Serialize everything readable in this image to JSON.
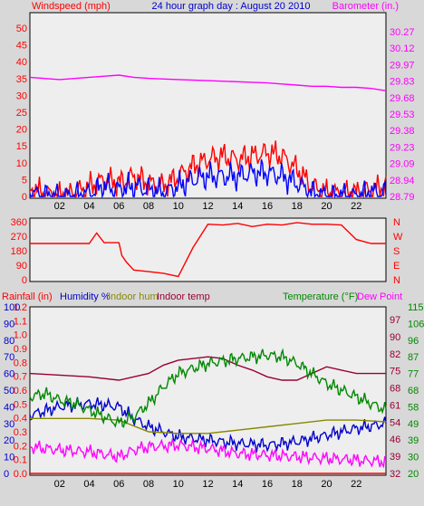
{
  "chart_data": [
    {
      "type": "line",
      "title": "24 hour graph day : August 20 2010",
      "hours": [
        "02",
        "04",
        "06",
        "08",
        "10",
        "12",
        "14",
        "16",
        "18",
        "20",
        "22"
      ],
      "left_axis": {
        "label": "Windspeed (mph)",
        "ticks": [
          "50",
          "45",
          "40",
          "35",
          "30",
          "25",
          "20",
          "15",
          "10",
          "5",
          "0"
        ],
        "ylim": [
          0,
          50
        ]
      },
      "right_axis": {
        "label": "Barometer (in.)",
        "ticks": [
          "30.27",
          "30.12",
          "29.97",
          "29.83",
          "29.68",
          "29.53",
          "29.38",
          "29.23",
          "29.09",
          "28.94",
          "28.79"
        ],
        "ylim": [
          28.79,
          30.27
        ]
      },
      "series": [
        {
          "name": "Windspeed (mph)",
          "color": "#ff0000",
          "x": [
            0,
            1,
            2,
            3,
            4,
            5,
            6,
            7,
            8,
            9,
            10,
            11,
            12,
            13,
            14,
            15,
            16,
            17,
            18,
            19,
            20,
            21,
            22,
            23,
            24
          ],
          "y": [
            2,
            1,
            0,
            1,
            3,
            5,
            4,
            6,
            4,
            3,
            6,
            9,
            11,
            12,
            11,
            12,
            13,
            12,
            8,
            3,
            1,
            1,
            1,
            2,
            3
          ]
        },
        {
          "name": "Gust",
          "color": "#0000ff",
          "x": [
            0,
            1,
            2,
            3,
            4,
            5,
            6,
            7,
            8,
            9,
            10,
            11,
            12,
            13,
            14,
            15,
            16,
            17,
            18,
            19,
            20,
            21,
            22,
            23,
            24
          ],
          "y": [
            1,
            0,
            0,
            0,
            1,
            3,
            2,
            3,
            2,
            1,
            3,
            5,
            6,
            6,
            6,
            7,
            7,
            6,
            4,
            1,
            0,
            0,
            0,
            1,
            1
          ]
        },
        {
          "name": "Barometer (in.)",
          "color": "#ff00ff",
          "x": [
            0,
            2,
            4,
            5,
            6,
            7,
            8,
            10,
            12,
            14,
            16,
            17,
            18,
            19,
            20,
            21,
            22,
            23,
            24
          ],
          "y": [
            29.86,
            29.84,
            29.86,
            29.87,
            29.88,
            29.86,
            29.85,
            29.84,
            29.83,
            29.82,
            29.81,
            29.8,
            29.79,
            29.78,
            29.78,
            29.77,
            29.77,
            29.76,
            29.74
          ]
        }
      ]
    },
    {
      "type": "line",
      "hours": [
        "02",
        "04",
        "06",
        "08",
        "10",
        "12",
        "14",
        "16",
        "18",
        "20",
        "22"
      ],
      "left_axis": {
        "ticks": [
          "360",
          "270",
          "180",
          "90",
          "0"
        ],
        "ylim": [
          0,
          360
        ]
      },
      "right_axis": {
        "ticks": [
          "N",
          "W",
          "S",
          "E",
          "N"
        ]
      },
      "series": [
        {
          "name": "Wind direction",
          "color": "#ff0000",
          "x": [
            0,
            4,
            4.5,
            5,
            6,
            6.2,
            6.5,
            7,
            8,
            9,
            10,
            11,
            12,
            13,
            14,
            15,
            16,
            17,
            18,
            19,
            20,
            21,
            22,
            23,
            24
          ],
          "y": [
            225,
            225,
            290,
            230,
            230,
            150,
            110,
            60,
            50,
            40,
            20,
            200,
            345,
            340,
            350,
            330,
            345,
            340,
            355,
            345,
            345,
            340,
            250,
            225,
            225
          ]
        }
      ]
    },
    {
      "type": "line",
      "hours": [
        "02",
        "04",
        "06",
        "08",
        "10",
        "12",
        "14",
        "16",
        "18",
        "20",
        "22"
      ],
      "legend": [
        "Rainfall (in)",
        "Humidity %",
        "Indoor hum",
        "Indoor temp",
        "Temperature (°F)",
        "Dew Point"
      ],
      "axes": {
        "rainfall": [
          "1.2",
          "1.1",
          "1.0",
          "0.9",
          "0.8",
          "0.7",
          "0.6",
          "0.5",
          "0.4",
          "0.3",
          "0.2",
          "0.1",
          "0.0"
        ],
        "humidity": [
          "100",
          "90",
          "80",
          "70",
          "60",
          "50",
          "40",
          "30",
          "20",
          "10",
          "0"
        ],
        "temperature_a": [
          "115",
          "106",
          "96",
          "87",
          "77",
          "68",
          "58",
          "49",
          "39",
          "30",
          "20"
        ],
        "temperature_b": [
          "97",
          "90",
          "82",
          "75",
          "68",
          "61",
          "54",
          "46",
          "39",
          "32"
        ]
      },
      "series": [
        {
          "name": "Rainfall (in)",
          "color": "#ff0000",
          "x": [
            0,
            24
          ],
          "y": [
            0,
            0
          ]
        },
        {
          "name": "Humidity %",
          "color": "#0000cc",
          "x": [
            0,
            2,
            4,
            6,
            7,
            8,
            9,
            10,
            12,
            14,
            16,
            18,
            20,
            22,
            24
          ],
          "y": [
            35,
            40,
            42,
            40,
            33,
            28,
            25,
            22,
            20,
            18,
            17,
            19,
            23,
            27,
            30
          ]
        },
        {
          "name": "Indoor hum",
          "color": "#888800",
          "x": [
            0,
            2,
            4,
            6,
            8,
            10,
            12,
            14,
            16,
            18,
            20,
            22,
            24
          ],
          "y": [
            33,
            33,
            33,
            32,
            25,
            24,
            24,
            26,
            28,
            30,
            32,
            32,
            31
          ]
        },
        {
          "name": "Indoor temp",
          "color": "#990033",
          "x": [
            0,
            2,
            4,
            6,
            8,
            9,
            10,
            12,
            13,
            14,
            15,
            16,
            17,
            18,
            19,
            20,
            21,
            22,
            24
          ],
          "y": [
            60,
            59,
            58,
            56,
            60,
            65,
            68,
            70,
            69,
            65,
            62,
            58,
            56,
            56,
            60,
            64,
            62,
            60,
            60
          ]
        },
        {
          "name": "Temperature (°F)",
          "color": "#008800",
          "x": [
            0,
            1,
            2,
            3,
            4,
            5,
            6,
            7,
            8,
            9,
            10,
            12,
            14,
            16,
            17,
            18,
            19,
            20,
            22,
            24
          ],
          "y": [
            46,
            48,
            44,
            42,
            38,
            34,
            30,
            34,
            42,
            52,
            60,
            66,
            69,
            71,
            70,
            66,
            60,
            54,
            46,
            38
          ]
        },
        {
          "name": "Dew Point",
          "color": "#ff00ff",
          "x": [
            0,
            2,
            4,
            6,
            7,
            8,
            10,
            12,
            14,
            16,
            18,
            20,
            22,
            24
          ],
          "y": [
            16,
            14,
            13,
            10,
            14,
            16,
            17,
            15,
            12,
            11,
            10,
            9,
            8,
            7
          ]
        }
      ]
    }
  ]
}
